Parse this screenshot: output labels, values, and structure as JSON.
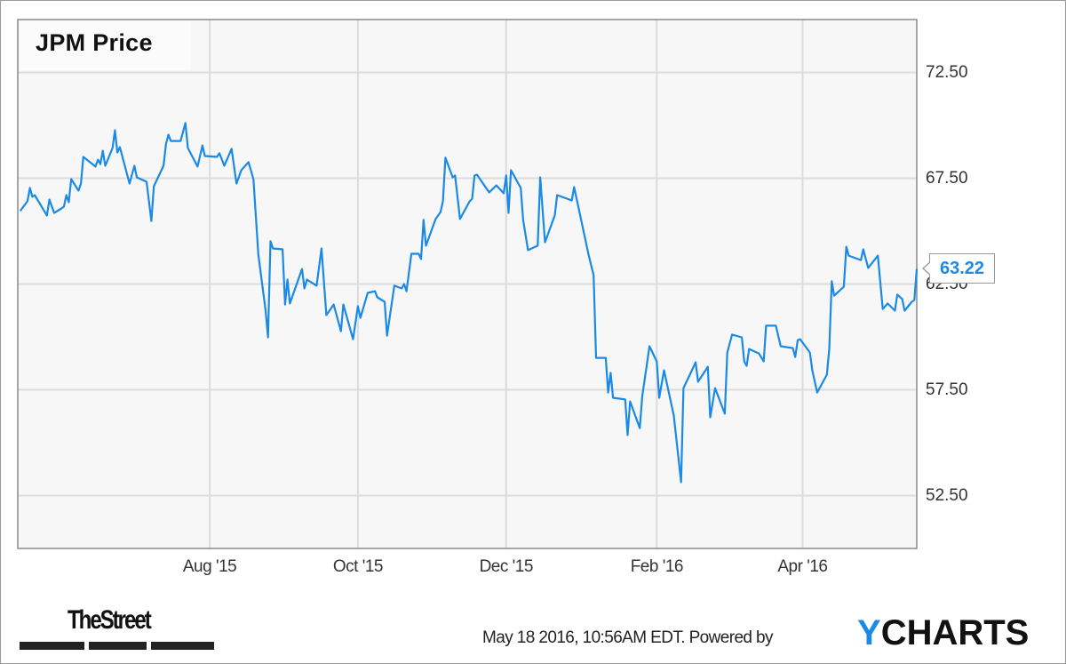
{
  "chart_data": {
    "type": "line",
    "title": "JPM Price",
    "xlabel": "",
    "ylabel": "",
    "xlim": [
      "2015-05-14",
      "2016-05-18"
    ],
    "ylim": [
      50,
      75
    ],
    "grid": true,
    "y_axis_side": "right",
    "x_ticks": [
      {
        "date": "2015-08-01",
        "label": "Aug '15"
      },
      {
        "date": "2015-10-01",
        "label": "Oct '15"
      },
      {
        "date": "2015-12-01",
        "label": "Dec '15"
      },
      {
        "date": "2016-02-01",
        "label": "Feb '16"
      },
      {
        "date": "2016-04-01",
        "label": "Apr '16"
      }
    ],
    "y_ticks": [
      {
        "value": 72.5,
        "label": "72.50"
      },
      {
        "value": 67.5,
        "label": "67.50"
      },
      {
        "value": 62.5,
        "label": "62.50"
      },
      {
        "value": 57.5,
        "label": "57.50"
      },
      {
        "value": 52.5,
        "label": "52.50"
      }
    ],
    "last_value_label": "63.22",
    "series": [
      {
        "color": "#1a8ae6",
        "points": [
          [
            "2015-05-15",
            65.95
          ],
          [
            "2015-05-18",
            66.41
          ],
          [
            "2015-05-19",
            67.04
          ],
          [
            "2015-05-20",
            66.62
          ],
          [
            "2015-05-21",
            66.7
          ],
          [
            "2015-05-26",
            65.74
          ],
          [
            "2015-05-27",
            66.49
          ],
          [
            "2015-05-29",
            65.86
          ],
          [
            "2015-06-01",
            66.07
          ],
          [
            "2015-06-02",
            66.16
          ],
          [
            "2015-06-03",
            66.7
          ],
          [
            "2015-06-04",
            66.37
          ],
          [
            "2015-06-05",
            67.46
          ],
          [
            "2015-06-08",
            66.91
          ],
          [
            "2015-06-09",
            67.25
          ],
          [
            "2015-06-10",
            68.51
          ],
          [
            "2015-06-15",
            68.05
          ],
          [
            "2015-06-16",
            68.38
          ],
          [
            "2015-06-17",
            68.17
          ],
          [
            "2015-06-18",
            68.8
          ],
          [
            "2015-06-19",
            68.09
          ],
          [
            "2015-06-22",
            68.93
          ],
          [
            "2015-06-23",
            69.77
          ],
          [
            "2015-06-24",
            68.72
          ],
          [
            "2015-06-25",
            68.97
          ],
          [
            "2015-06-29",
            67.25
          ],
          [
            "2015-07-01",
            68.09
          ],
          [
            "2015-07-02",
            67.54
          ],
          [
            "2015-07-06",
            67.33
          ],
          [
            "2015-07-08",
            65.48
          ],
          [
            "2015-07-09",
            67.12
          ],
          [
            "2015-07-13",
            68.09
          ],
          [
            "2015-07-14",
            69.1
          ],
          [
            "2015-07-15",
            69.56
          ],
          [
            "2015-07-16",
            69.26
          ],
          [
            "2015-07-20",
            69.26
          ],
          [
            "2015-07-22",
            70.11
          ],
          [
            "2015-07-23",
            68.93
          ],
          [
            "2015-07-27",
            68.05
          ],
          [
            "2015-07-29",
            69.05
          ],
          [
            "2015-07-30",
            68.55
          ],
          [
            "2015-08-04",
            68.51
          ],
          [
            "2015-08-05",
            68.68
          ],
          [
            "2015-08-07",
            68.09
          ],
          [
            "2015-08-10",
            68.89
          ],
          [
            "2015-08-12",
            67.25
          ],
          [
            "2015-08-14",
            67.88
          ],
          [
            "2015-08-17",
            68.26
          ],
          [
            "2015-08-19",
            67.46
          ],
          [
            "2015-08-21",
            63.89
          ],
          [
            "2015-08-24",
            61.24
          ],
          [
            "2015-08-25",
            59.98
          ],
          [
            "2015-08-26",
            64.52
          ],
          [
            "2015-08-27",
            64.18
          ],
          [
            "2015-08-31",
            64.14
          ],
          [
            "2015-09-01",
            61.53
          ],
          [
            "2015-09-02",
            62.71
          ],
          [
            "2015-09-03",
            61.58
          ],
          [
            "2015-09-08",
            63.21
          ],
          [
            "2015-09-09",
            62.29
          ],
          [
            "2015-09-10",
            62.71
          ],
          [
            "2015-09-14",
            62.42
          ],
          [
            "2015-09-16",
            64.18
          ],
          [
            "2015-09-18",
            61.03
          ],
          [
            "2015-09-21",
            61.53
          ],
          [
            "2015-09-24",
            60.27
          ],
          [
            "2015-09-25",
            61.53
          ],
          [
            "2015-09-29",
            59.89
          ],
          [
            "2015-10-01",
            61.45
          ],
          [
            "2015-10-02",
            60.9
          ],
          [
            "2015-10-05",
            62.08
          ],
          [
            "2015-10-08",
            62.16
          ],
          [
            "2015-10-09",
            61.87
          ],
          [
            "2015-10-12",
            61.66
          ],
          [
            "2015-10-13",
            60.06
          ],
          [
            "2015-10-16",
            62.42
          ],
          [
            "2015-10-19",
            62.29
          ],
          [
            "2015-10-20",
            62.5
          ],
          [
            "2015-10-21",
            62.16
          ],
          [
            "2015-10-23",
            63.93
          ],
          [
            "2015-10-26",
            63.93
          ],
          [
            "2015-10-27",
            63.68
          ],
          [
            "2015-10-28",
            65.53
          ],
          [
            "2015-10-29",
            64.31
          ],
          [
            "2015-11-02",
            65.57
          ],
          [
            "2015-11-04",
            65.9
          ],
          [
            "2015-11-05",
            66.41
          ],
          [
            "2015-11-06",
            68.47
          ],
          [
            "2015-11-09",
            67.54
          ],
          [
            "2015-11-10",
            67.63
          ],
          [
            "2015-11-12",
            65.57
          ],
          [
            "2015-11-16",
            66.41
          ],
          [
            "2015-11-17",
            66.53
          ],
          [
            "2015-11-18",
            67.63
          ],
          [
            "2015-11-19",
            67.67
          ],
          [
            "2015-11-24",
            66.83
          ],
          [
            "2015-11-27",
            67.16
          ],
          [
            "2015-11-30",
            66.79
          ],
          [
            "2015-12-01",
            67.63
          ],
          [
            "2015-12-02",
            65.86
          ],
          [
            "2015-12-03",
            67.88
          ],
          [
            "2015-12-07",
            67.04
          ],
          [
            "2015-12-08",
            65.53
          ],
          [
            "2015-12-10",
            64.1
          ],
          [
            "2015-12-14",
            64.31
          ],
          [
            "2015-12-15",
            67.54
          ],
          [
            "2015-12-17",
            64.47
          ],
          [
            "2015-12-21",
            65.74
          ],
          [
            "2015-12-22",
            66.7
          ],
          [
            "2015-12-28",
            66.45
          ],
          [
            "2015-12-29",
            67.08
          ],
          [
            "2016-01-04",
            63.84
          ],
          [
            "2016-01-06",
            62.92
          ],
          [
            "2016-01-07",
            59.01
          ],
          [
            "2016-01-11",
            59.01
          ],
          [
            "2016-01-12",
            57.37
          ],
          [
            "2016-01-13",
            58.3
          ],
          [
            "2016-01-14",
            57.12
          ],
          [
            "2016-01-19",
            57.04
          ],
          [
            "2016-01-20",
            55.36
          ],
          [
            "2016-01-21",
            56.95
          ],
          [
            "2016-01-25",
            55.69
          ],
          [
            "2016-01-26",
            57.16
          ],
          [
            "2016-01-29",
            59.56
          ],
          [
            "2016-02-01",
            58.84
          ],
          [
            "2016-02-02",
            57.12
          ],
          [
            "2016-02-04",
            58.42
          ],
          [
            "2016-02-08",
            56.28
          ],
          [
            "2016-02-11",
            53.13
          ],
          [
            "2016-02-12",
            57.58
          ],
          [
            "2016-02-17",
            58.8
          ],
          [
            "2016-02-18",
            57.88
          ],
          [
            "2016-02-22",
            58.59
          ],
          [
            "2016-02-23",
            56.2
          ],
          [
            "2016-02-25",
            57.58
          ],
          [
            "2016-02-29",
            56.37
          ],
          [
            "2016-03-01",
            59.26
          ],
          [
            "2016-03-03",
            60.11
          ],
          [
            "2016-03-07",
            59.98
          ],
          [
            "2016-03-08",
            58.84
          ],
          [
            "2016-03-09",
            58.63
          ],
          [
            "2016-03-10",
            59.43
          ],
          [
            "2016-03-14",
            59.22
          ],
          [
            "2016-03-16",
            58.84
          ],
          [
            "2016-03-17",
            60.53
          ],
          [
            "2016-03-21",
            60.53
          ],
          [
            "2016-03-23",
            59.56
          ],
          [
            "2016-03-28",
            59.47
          ],
          [
            "2016-03-29",
            59.05
          ],
          [
            "2016-03-30",
            59.85
          ],
          [
            "2016-03-31",
            59.89
          ],
          [
            "2016-04-04",
            59.26
          ],
          [
            "2016-04-05",
            58.42
          ],
          [
            "2016-04-07",
            57.37
          ],
          [
            "2016-04-11",
            58.21
          ],
          [
            "2016-04-12",
            59.43
          ],
          [
            "2016-04-13",
            62.63
          ],
          [
            "2016-04-14",
            61.95
          ],
          [
            "2016-04-18",
            62.37
          ],
          [
            "2016-04-19",
            64.26
          ],
          [
            "2016-04-20",
            63.84
          ],
          [
            "2016-04-25",
            63.63
          ],
          [
            "2016-04-26",
            64.14
          ],
          [
            "2016-04-28",
            63.26
          ],
          [
            "2016-05-02",
            63.84
          ],
          [
            "2016-05-04",
            61.32
          ],
          [
            "2016-05-06",
            61.58
          ],
          [
            "2016-05-09",
            61.24
          ],
          [
            "2016-05-10",
            62.0
          ],
          [
            "2016-05-12",
            61.79
          ],
          [
            "2016-05-13",
            61.24
          ],
          [
            "2016-05-16",
            61.66
          ],
          [
            "2016-05-17",
            61.74
          ],
          [
            "2016-05-18",
            63.22
          ]
        ]
      }
    ]
  },
  "footer": {
    "timestamp_text": "May 18 2016, 10:56AM EDT.  Powered by",
    "brand_y": "Y",
    "brand_rest": "CHARTS",
    "publisher_logo": "TheStreet"
  },
  "colors": {
    "line": "#1a8ae6",
    "plot_bg": "#f7f7f7",
    "grid": "#dcdcdc",
    "accent": "#1a8ae6"
  }
}
